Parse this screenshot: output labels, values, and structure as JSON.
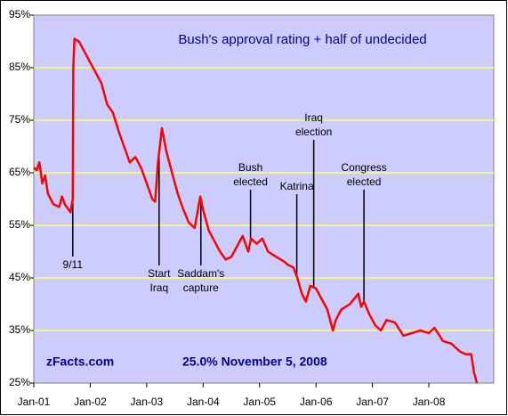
{
  "chart_data": {
    "type": "line",
    "title": "Bush's approval rating + half of undecided",
    "source": "zFacts.com",
    "note": "25.0% November 5, 2008",
    "xlim": [
      2001,
      2009.15
    ],
    "xticks": [
      {
        "value": 2001,
        "label": "Jan-01"
      },
      {
        "value": 2002,
        "label": "Jan-02"
      },
      {
        "value": 2003,
        "label": "Jan-03"
      },
      {
        "value": 2004,
        "label": "Jan-04"
      },
      {
        "value": 2005,
        "label": "Jan-05"
      },
      {
        "value": 2006,
        "label": "Jan-06"
      },
      {
        "value": 2007,
        "label": "Jan-07"
      },
      {
        "value": 2008,
        "label": "Jan-08"
      }
    ],
    "ylim": [
      25,
      95
    ],
    "yticks": [
      {
        "value": 25,
        "label": "25%"
      },
      {
        "value": 35,
        "label": "35%"
      },
      {
        "value": 45,
        "label": "45%"
      },
      {
        "value": 55,
        "label": "55%"
      },
      {
        "value": 65,
        "label": "65%"
      },
      {
        "value": 75,
        "label": "75%"
      },
      {
        "value": 85,
        "label": "85%"
      },
      {
        "value": 95,
        "label": "95%"
      }
    ],
    "grid": true,
    "series": [
      {
        "name": "Bush's approval rating + half of undecided",
        "color": "#ff0000",
        "x": [
          2001.0,
          2001.05,
          2001.1,
          2001.15,
          2001.2,
          2001.25,
          2001.35,
          2001.45,
          2001.5,
          2001.55,
          2001.65,
          2001.69,
          2001.7,
          2001.72,
          2001.8,
          2001.9,
          2002.0,
          2002.1,
          2002.2,
          2002.3,
          2002.4,
          2002.5,
          2002.6,
          2002.7,
          2002.8,
          2002.9,
          2003.0,
          2003.1,
          2003.15,
          2003.2,
          2003.27,
          2003.35,
          2003.45,
          2003.55,
          2003.65,
          2003.75,
          2003.85,
          2003.95,
          2004.0,
          2004.1,
          2004.2,
          2004.3,
          2004.4,
          2004.5,
          2004.6,
          2004.7,
          2004.8,
          2004.85,
          2004.95,
          2005.05,
          2005.15,
          2005.3,
          2005.45,
          2005.5,
          2005.6,
          2005.67,
          2005.75,
          2005.82,
          2005.9,
          2006.0,
          2006.1,
          2006.2,
          2006.3,
          2006.35,
          2006.45,
          2006.6,
          2006.75,
          2006.8,
          2006.85,
          2006.95,
          2007.05,
          2007.15,
          2007.25,
          2007.4,
          2007.55,
          2007.7,
          2007.85,
          2008.0,
          2008.1,
          2008.25,
          2008.4,
          2008.55,
          2008.65,
          2008.75,
          2008.8,
          2008.85
        ],
        "values": [
          66,
          65.5,
          67,
          63,
          64.5,
          61,
          59,
          58.5,
          60.5,
          59,
          57.5,
          60,
          85,
          90.5,
          90,
          88,
          86,
          84,
          82,
          78,
          76.5,
          73,
          70,
          67,
          68,
          66,
          63,
          60,
          59.5,
          67,
          73.5,
          69,
          65,
          61,
          58,
          55.5,
          54.5,
          60.5,
          58,
          54,
          52,
          50,
          48.5,
          49,
          51,
          53,
          50,
          52.5,
          51.5,
          52.5,
          50,
          49,
          48,
          47.5,
          47,
          45,
          42,
          40.5,
          43.5,
          43,
          41,
          39,
          35,
          37,
          39,
          40,
          42,
          39.5,
          40.5,
          38,
          36,
          35,
          37,
          36.5,
          34,
          34.5,
          35,
          34.5,
          35.5,
          33,
          32.5,
          31,
          30.5,
          30.5,
          27,
          25
        ]
      }
    ],
    "annotations": [
      {
        "lines": [
          "9/11"
        ],
        "x": 2001.69
      },
      {
        "lines": [
          "Start",
          "Iraq"
        ],
        "x": 2003.22
      },
      {
        "lines": [
          "Saddam's",
          "capture"
        ],
        "x": 2003.96
      },
      {
        "lines": [
          "Bush",
          "elected"
        ],
        "x": 2004.84
      },
      {
        "lines": [
          "Katrina"
        ],
        "x": 2005.66
      },
      {
        "lines": [
          "Iraq",
          "election"
        ],
        "x": 2005.96
      },
      {
        "lines": [
          "Congress",
          "elected"
        ],
        "x": 2006.85
      }
    ]
  }
}
